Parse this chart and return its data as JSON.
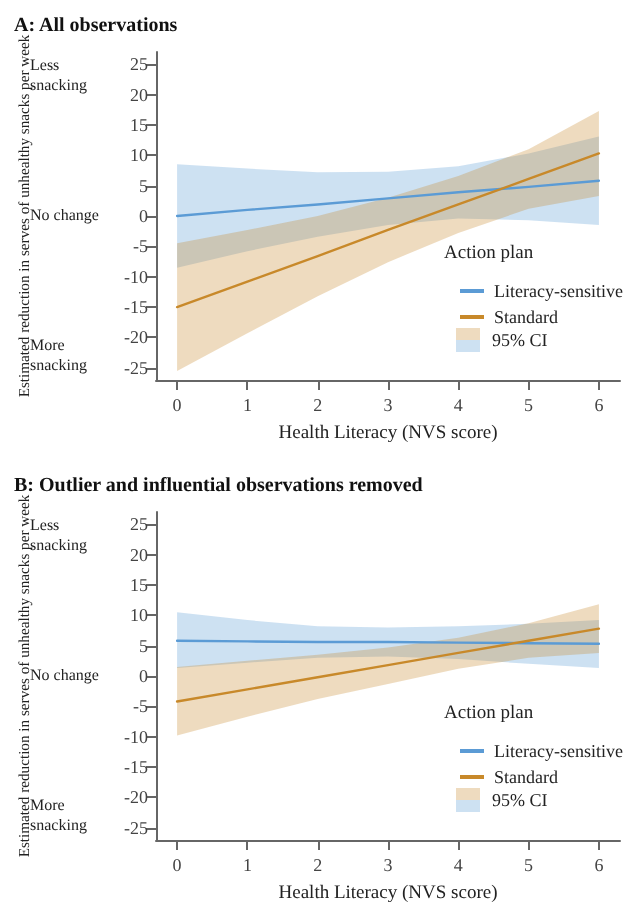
{
  "chart_data": [
    {
      "type": "line",
      "title": "A: All observations",
      "xlabel": "Health Literacy (NVS score)",
      "ylabel": "Estimated reduction in serves of unhealthy snacks per week",
      "legend_title": "Action plan",
      "legend": "bottom right",
      "marker": "none",
      "line_style": "solid",
      "grid": false,
      "annotations": [
        "Less snacking",
        "No change",
        "More snacking",
        "95% CI"
      ],
      "x": [
        0,
        1,
        2,
        3,
        4,
        5,
        6
      ],
      "xlim": [
        -0.3,
        6.3
      ],
      "xticks": [
        0,
        1,
        2,
        3,
        4,
        5,
        6
      ],
      "ylim": [
        -27,
        27
      ],
      "yticks": [
        -25,
        -20,
        -15,
        -10,
        -5,
        0,
        5,
        10,
        15,
        20,
        25
      ],
      "series": [
        {
          "name": "Literacy-sensitive",
          "color": "#5b9bd5",
          "values": [
            0,
            1,
            1.9,
            2.9,
            3.9,
            4.8,
            5.8
          ],
          "lower": [
            -8.5,
            -5.8,
            -3.4,
            -1.5,
            -0.4,
            -0.7,
            -1.5
          ],
          "upper": [
            8.5,
            7.8,
            7.2,
            7.3,
            8.2,
            10.3,
            13.1
          ]
        },
        {
          "name": "Standard",
          "color": "#c8892a",
          "values": [
            -15,
            -10.8,
            -6.6,
            -2.3,
            1.9,
            6.1,
            10.3
          ],
          "lower": [
            -25.5,
            -19.3,
            -13.2,
            -7.6,
            -2.8,
            1.2,
            3.3
          ],
          "upper": [
            -4.5,
            -2.3,
            0,
            3,
            6.6,
            11,
            17.3
          ]
        }
      ]
    },
    {
      "type": "line",
      "title": "B: Outlier and influential observations removed",
      "xlabel": "Health Literacy (NVS score)",
      "ylabel": "Estimated reduction in serves of unhealthy snacks per week",
      "legend_title": "Action plan",
      "legend": "bottom right",
      "marker": "none",
      "line_style": "solid",
      "grid": false,
      "annotations": [
        "Less snacking",
        "No change",
        "More snacking",
        "95% CI"
      ],
      "x": [
        0,
        1,
        2,
        3,
        4,
        5,
        6
      ],
      "xlim": [
        -0.3,
        6.3
      ],
      "xticks": [
        0,
        1,
        2,
        3,
        4,
        5,
        6
      ],
      "ylim": [
        -27,
        27
      ],
      "yticks": [
        -25,
        -20,
        -15,
        -10,
        -5,
        0,
        5,
        10,
        15,
        20,
        25
      ],
      "series": [
        {
          "name": "Literacy-sensitive",
          "color": "#5b9bd5",
          "values": [
            5.8,
            5.7,
            5.6,
            5.6,
            5.5,
            5.4,
            5.3
          ],
          "lower": [
            1.3,
            2.2,
            3,
            3.2,
            2.8,
            2,
            1.3
          ],
          "upper": [
            10.5,
            9.2,
            8.2,
            8,
            8.2,
            8.6,
            9.2
          ]
        },
        {
          "name": "Standard",
          "color": "#c8892a",
          "values": [
            -4.2,
            -2.2,
            -0.2,
            1.8,
            3.8,
            5.8,
            7.8
          ],
          "lower": [
            -9.8,
            -6.7,
            -3.8,
            -1.3,
            1.2,
            3,
            3.8
          ],
          "upper": [
            1.5,
            2.5,
            3.5,
            4.7,
            6.3,
            8.7,
            11.8
          ]
        }
      ]
    }
  ]
}
